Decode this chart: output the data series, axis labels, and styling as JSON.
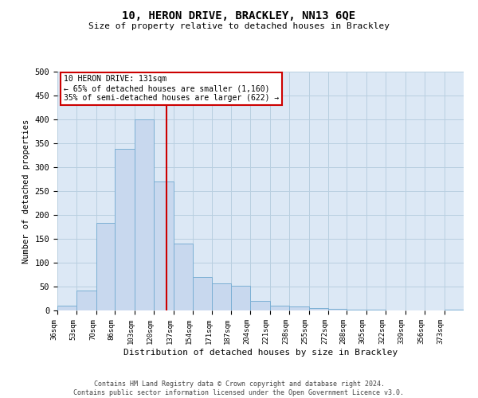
{
  "title1": "10, HERON DRIVE, BRACKLEY, NN13 6QE",
  "title2": "Size of property relative to detached houses in Brackley",
  "xlabel": "Distribution of detached houses by size in Brackley",
  "ylabel": "Number of detached properties",
  "footer1": "Contains HM Land Registry data © Crown copyright and database right 2024.",
  "footer2": "Contains public sector information licensed under the Open Government Licence v3.0.",
  "annotation_line1": "10 HERON DRIVE: 131sqm",
  "annotation_line2": "← 65% of detached houses are smaller (1,160)",
  "annotation_line3": "35% of semi-detached houses are larger (622) →",
  "red_line_x": 131,
  "bar_color": "#c8d8ee",
  "bar_edge_color": "#7bafd4",
  "red_line_color": "#cc0000",
  "annotation_box_edgecolor": "#cc0000",
  "bg_axes": "#dce8f5",
  "grid_color": "#b8cfe0",
  "categories": [
    "36sqm",
    "53sqm",
    "70sqm",
    "86sqm",
    "103sqm",
    "120sqm",
    "137sqm",
    "154sqm",
    "171sqm",
    "187sqm",
    "204sqm",
    "221sqm",
    "238sqm",
    "255sqm",
    "272sqm",
    "288sqm",
    "305sqm",
    "322sqm",
    "339sqm",
    "356sqm",
    "373sqm"
  ],
  "bin_edges": [
    36,
    53,
    70,
    86,
    103,
    120,
    137,
    154,
    171,
    187,
    204,
    221,
    238,
    255,
    272,
    288,
    305,
    322,
    339,
    356,
    373,
    390
  ],
  "values": [
    10,
    42,
    183,
    338,
    400,
    270,
    140,
    70,
    57,
    52,
    20,
    10,
    8,
    5,
    3,
    2,
    1,
    0,
    0,
    0,
    1
  ],
  "ylim": [
    0,
    500
  ],
  "yticks": [
    0,
    50,
    100,
    150,
    200,
    250,
    300,
    350,
    400,
    450,
    500
  ]
}
